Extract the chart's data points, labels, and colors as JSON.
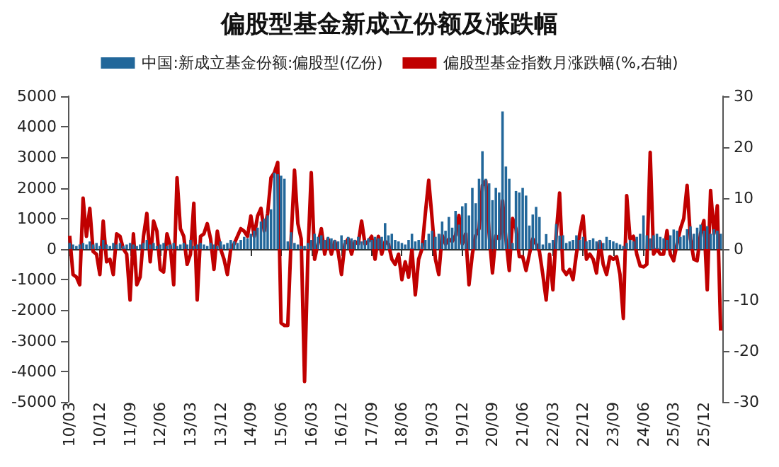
{
  "chart_data": {
    "type": "bar",
    "title": "偏股型基金新成立份额及涨跌幅",
    "categories": [
      "10/03",
      null,
      null,
      null,
      null,
      null,
      null,
      null,
      null,
      "10/12",
      null,
      null,
      null,
      null,
      null,
      null,
      null,
      null,
      "11/09",
      null,
      null,
      null,
      null,
      null,
      null,
      null,
      null,
      "12/06",
      null,
      null,
      null,
      null,
      null,
      null,
      null,
      null,
      "13/03",
      null,
      null,
      null,
      null,
      null,
      null,
      null,
      null,
      "13/12",
      null,
      null,
      null,
      null,
      null,
      null,
      null,
      null,
      "14/09",
      null,
      null,
      null,
      null,
      null,
      null,
      null,
      null,
      "15/06",
      null,
      null,
      null,
      null,
      null,
      null,
      null,
      null,
      "16/03",
      null,
      null,
      null,
      null,
      null,
      null,
      null,
      null,
      "16/12",
      null,
      null,
      null,
      null,
      null,
      null,
      null,
      null,
      "17/09",
      null,
      null,
      null,
      null,
      null,
      null,
      null,
      null,
      "18/06",
      null,
      null,
      null,
      null,
      null,
      null,
      null,
      null,
      "19/03",
      null,
      null,
      null,
      null,
      null,
      null,
      null,
      null,
      "19/12",
      null,
      null,
      null,
      null,
      null,
      null,
      null,
      null,
      "20/09",
      null,
      null,
      null,
      null,
      null,
      null,
      null,
      null,
      "21/06",
      null,
      null,
      null,
      null,
      null,
      null,
      null,
      null,
      "22/03",
      null,
      null,
      null,
      null,
      null,
      null,
      null,
      null,
      "22/12",
      null,
      null,
      null,
      null,
      null,
      null,
      null,
      null,
      "23/09",
      null,
      null,
      null,
      null,
      null,
      null,
      null,
      null,
      "24/06",
      null,
      null,
      null,
      null,
      null,
      null,
      null,
      null,
      "25/03",
      null,
      null,
      null,
      null,
      null,
      null,
      null,
      null,
      "25/12",
      null,
      null,
      null,
      null,
      null
    ],
    "series": [
      {
        "name": "中国:新成立基金份额:偏股型(亿份)",
        "color": "#22679a",
        "values": [
          200,
          150,
          100,
          150,
          200,
          150,
          250,
          150,
          200,
          100,
          300,
          150,
          100,
          200,
          150,
          200,
          100,
          150,
          200,
          150,
          100,
          150,
          200,
          300,
          150,
          200,
          100,
          150,
          200,
          100,
          150,
          200,
          100,
          150,
          200,
          150,
          300,
          100,
          150,
          200,
          150,
          100,
          200,
          150,
          100,
          250,
          150,
          200,
          300,
          250,
          200,
          300,
          400,
          350,
          500,
          600,
          700,
          900,
          1000,
          1100,
          1300,
          2500,
          2450,
          2400,
          2300,
          250,
          550,
          200,
          150,
          100,
          100,
          200,
          300,
          500,
          400,
          450,
          300,
          400,
          350,
          300,
          250,
          450,
          300,
          400,
          350,
          300,
          400,
          250,
          300,
          350,
          300,
          400,
          350,
          400,
          850,
          450,
          500,
          300,
          250,
          200,
          150,
          300,
          500,
          250,
          300,
          200,
          300,
          500,
          600,
          400,
          500,
          900,
          600,
          1050,
          700,
          1250,
          800,
          1400,
          1500,
          1100,
          2000,
          1500,
          2300,
          3200,
          2300,
          2150,
          1600,
          2000,
          1850,
          4500,
          2700,
          2300,
          200,
          1900,
          1850,
          2000,
          1750,
          770,
          1130,
          1380,
          1050,
          150,
          490,
          200,
          300,
          820,
          440,
          450,
          200,
          250,
          300,
          450,
          300,
          400,
          250,
          300,
          350,
          250,
          300,
          200,
          400,
          300,
          250,
          200,
          150,
          100,
          200,
          300,
          250,
          400,
          500,
          1100,
          450,
          350,
          450,
          500,
          400,
          350,
          300,
          450,
          640,
          600,
          400,
          450,
          650,
          740,
          500,
          700,
          800,
          600,
          750,
          500,
          650,
          600,
          500
        ]
      },
      {
        "name": "偏股型基金指数月涨跌幅(%,右轴)",
        "type": "line",
        "axis": "y2",
        "color": "#c00000",
        "values": [
          2.6,
          -5,
          -5.5,
          -7,
          10,
          2.5,
          8,
          -0.5,
          -1,
          -5,
          5.5,
          -2.5,
          -2,
          -5,
          3,
          2.5,
          0,
          -1,
          -10,
          3,
          -7,
          -5.5,
          2.5,
          7,
          -2.5,
          5.5,
          3.5,
          -4,
          -4.5,
          3,
          0.5,
          -7,
          14,
          4,
          2.5,
          -3,
          -1,
          9,
          -10,
          2.5,
          3,
          5,
          2,
          -4,
          3.5,
          0,
          -2,
          -5,
          0,
          1,
          2.5,
          4,
          3.5,
          2.5,
          6.5,
          2.5,
          6.5,
          8,
          3.5,
          7,
          14,
          15,
          17,
          -14.5,
          -15,
          -15,
          2,
          15.5,
          5,
          2,
          -26,
          -1,
          15,
          -2,
          1,
          4,
          -1,
          2,
          -1,
          1.5,
          -0.5,
          -5,
          1,
          2,
          -1,
          1.5,
          1,
          5.5,
          1,
          1.5,
          2.5,
          -2,
          2.5,
          -1,
          1.5,
          1,
          -2,
          -3,
          -1,
          -6,
          -2.5,
          -5.5,
          0,
          -9,
          -2,
          0,
          7,
          13.5,
          6,
          -2,
          -5,
          2.7,
          1,
          2,
          1.5,
          2.7,
          6.6,
          1,
          3,
          -7,
          -1,
          2.7,
          4,
          12.5,
          13.4,
          3,
          -4.7,
          2.6,
          2,
          9.5,
          2,
          -4.2,
          6,
          4,
          -1.5,
          -1.5,
          -4.2,
          -1,
          2,
          1,
          -0.5,
          -5,
          -10,
          -1,
          -8,
          3,
          11,
          -4,
          -5,
          -4,
          -6,
          -1,
          3,
          6.5,
          -2,
          -1,
          -2,
          -4.7,
          1.5,
          -3,
          -5,
          -1.5,
          -2,
          -1.5,
          -5,
          -13.6,
          10.5,
          2,
          2.5,
          -1,
          -3.3,
          -3.5,
          -3,
          19,
          -1,
          0,
          -1,
          -1,
          3.6,
          -1,
          -2.3,
          1,
          4,
          6,
          12.5,
          2,
          -2,
          -2.3,
          3,
          5.6,
          -8,
          11.5,
          3,
          8.5,
          -16
        ]
      }
    ],
    "ylim": [
      -5000,
      5000
    ],
    "yticks": [
      -5000,
      -4000,
      -3000,
      -2000,
      -1000,
      0,
      1000,
      2000,
      3000,
      4000,
      5000
    ],
    "y2lim": [
      -30,
      30
    ],
    "y2ticks": [
      -30,
      -20,
      -10,
      0,
      10,
      20,
      30
    ],
    "legend": "top",
    "marker": "none"
  }
}
